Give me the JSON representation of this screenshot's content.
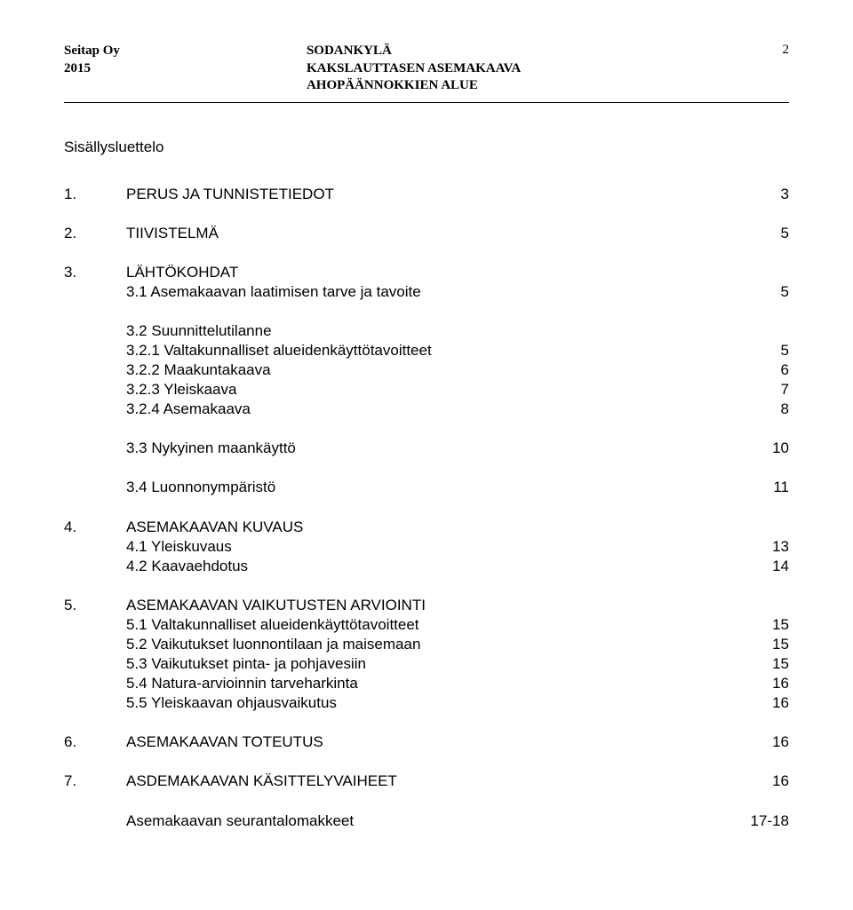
{
  "header": {
    "company": "Seitap Oy",
    "year": "2015",
    "title_line1": "SODANKYLÄ",
    "title_line2": "KAKSLAUTTASEN ASEMAKAAVA",
    "title_line3": "AHOPÄÄNNOKKIEN ALUE",
    "page_number": "2"
  },
  "toc_title": "Sisällysluettelo",
  "toc": [
    {
      "type": "row",
      "num": "1.",
      "label": "PERUS JA TUNNISTETIEDOT",
      "page": "3"
    },
    {
      "type": "spacer-l"
    },
    {
      "type": "row",
      "num": "2.",
      "label": "TIIVISTELMÄ",
      "page": "5"
    },
    {
      "type": "spacer-l"
    },
    {
      "type": "row",
      "num": "3.",
      "label": "LÄHTÖKOHDAT",
      "page": ""
    },
    {
      "type": "row",
      "num": "",
      "label": "3.1 Asemakaavan laatimisen tarve ja tavoite",
      "page": "5"
    },
    {
      "type": "spacer-l"
    },
    {
      "type": "row",
      "num": "",
      "label": "3.2 Suunnittelutilanne",
      "page": ""
    },
    {
      "type": "row",
      "num": "",
      "label": "3.2.1 Valtakunnalliset alueidenkäyttötavoitteet",
      "page": "5"
    },
    {
      "type": "row",
      "num": "",
      "label": "3.2.2 Maakuntakaava",
      "page": "6"
    },
    {
      "type": "row",
      "num": "",
      "label": "3.2.3 Yleiskaava",
      "page": "7"
    },
    {
      "type": "row",
      "num": "",
      "label": "3.2.4 Asemakaava",
      "page": "8"
    },
    {
      "type": "spacer-l"
    },
    {
      "type": "row",
      "num": "",
      "label": "3.3 Nykyinen maankäyttö",
      "page": "10"
    },
    {
      "type": "spacer-l"
    },
    {
      "type": "row",
      "num": "",
      "label": "3.4 Luonnonympäristö",
      "page": "11"
    },
    {
      "type": "spacer-l"
    },
    {
      "type": "row",
      "num": "4.",
      "label": "ASEMAKAAVAN KUVAUS",
      "page": ""
    },
    {
      "type": "row",
      "num": "",
      "label": "4.1 Yleiskuvaus",
      "page": "13"
    },
    {
      "type": "row",
      "num": "",
      "label": "4.2 Kaavaehdotus",
      "page": "14"
    },
    {
      "type": "spacer-l"
    },
    {
      "type": "row",
      "num": "5.",
      "label": "ASEMAKAAVAN VAIKUTUSTEN ARVIOINTI",
      "page": ""
    },
    {
      "type": "row",
      "num": "",
      "label": "5.1 Valtakunnalliset alueidenkäyttötavoitteet",
      "page": "15"
    },
    {
      "type": "row",
      "num": "",
      "label": "5.2 Vaikutukset luonnontilaan ja maisemaan",
      "page": "15"
    },
    {
      "type": "row",
      "num": "",
      "label": "5.3 Vaikutukset pinta- ja pohjavesiin",
      "page": "15"
    },
    {
      "type": "row",
      "num": "",
      "label": "5.4 Natura-arvioinnin tarveharkinta",
      "page": "16"
    },
    {
      "type": "row",
      "num": "",
      "label": "5.5 Yleiskaavan ohjausvaikutus",
      "page": "16"
    },
    {
      "type": "spacer-l"
    },
    {
      "type": "row",
      "num": "6.",
      "label": "ASEMAKAAVAN TOTEUTUS",
      "page": "16"
    },
    {
      "type": "spacer-l"
    },
    {
      "type": "row",
      "num": "7.",
      "label": "ASDEMAKAAVAN KÄSITTELYVAIHEET",
      "page": "16"
    },
    {
      "type": "spacer-l"
    },
    {
      "type": "row",
      "num": "",
      "label": "Asemakaavan seurantalomakkeet",
      "page": "17-18"
    }
  ]
}
